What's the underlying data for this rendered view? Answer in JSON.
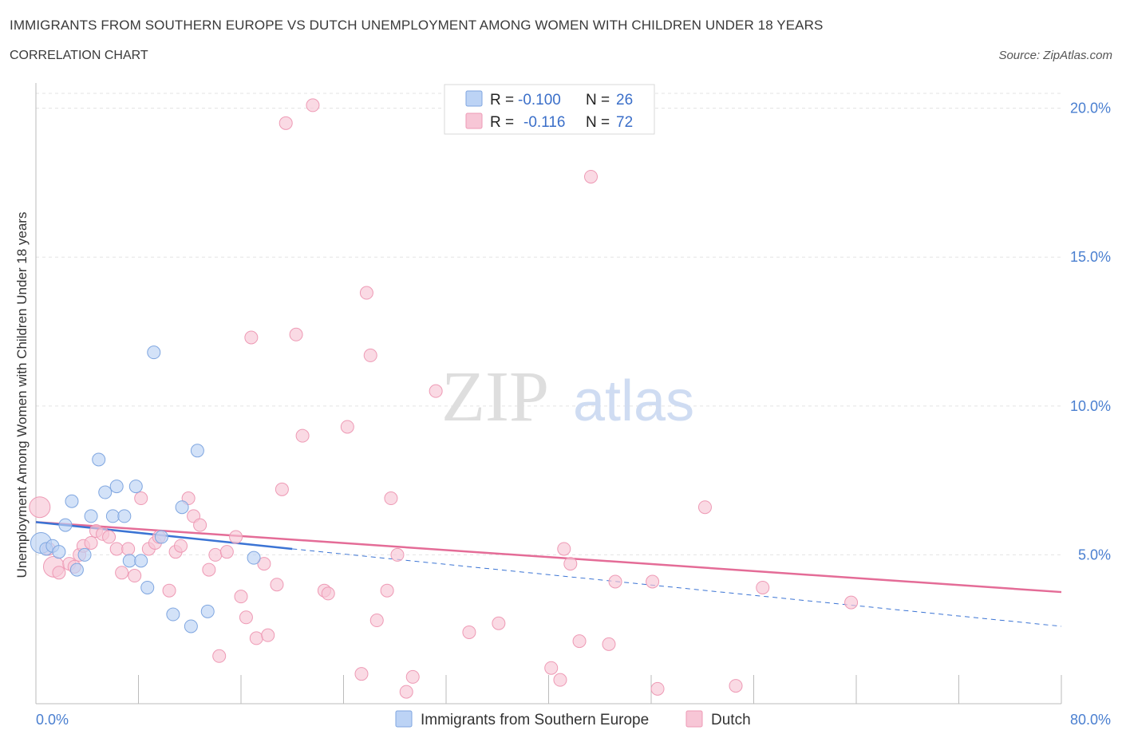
{
  "header": {
    "title": "IMMIGRANTS FROM SOUTHERN EUROPE VS DUTCH UNEMPLOYMENT AMONG WOMEN WITH CHILDREN UNDER 18 YEARS",
    "subtitle": "CORRELATION CHART",
    "source": "Source: ZipAtlas.com"
  },
  "watermark": {
    "zip": "ZIP",
    "atlas": "atlas"
  },
  "legend": {
    "r_label": "R =",
    "n_label": "N =",
    "rows": [
      {
        "r": "-0.100",
        "n": "26"
      },
      {
        "r": "-0.116",
        "n": "72"
      }
    ]
  },
  "colors": {
    "blue_fill": "#bcd3f5",
    "blue_stroke": "#7fa6e0",
    "blue_line": "#3b74d4",
    "pink_fill": "#f7c6d6",
    "pink_stroke": "#ee9ab5",
    "pink_line": "#e46c97"
  },
  "chart_data": {
    "type": "scatter",
    "title": "IMMIGRANTS FROM SOUTHERN EUROPE VS DUTCH UNEMPLOYMENT AMONG WOMEN WITH CHILDREN UNDER 18 YEARS",
    "xlabel": "",
    "ylabel": "Unemployment Among Women with Children Under 18 years",
    "xlim": [
      0,
      80
    ],
    "ylim": [
      0,
      20.5
    ],
    "x_tick_labels": [
      "0.0%",
      "80.0%"
    ],
    "y_ticks": [
      5,
      10,
      15,
      20
    ],
    "y_tick_labels": [
      "5.0%",
      "10.0%",
      "15.0%",
      "20.0%"
    ],
    "grid": true,
    "legend_position": "top-center",
    "series": [
      {
        "name": "Immigrants from Southern Europe",
        "r": -0.1,
        "n": 26,
        "trend": {
          "x": [
            0,
            20
          ],
          "y": [
            6.1,
            5.2
          ]
        },
        "trend_dashed": {
          "x": [
            20,
            80
          ],
          "y": [
            5.2,
            2.6
          ]
        },
        "points": [
          {
            "x": 0.4,
            "y": 5.4,
            "s": 2
          },
          {
            "x": 0.8,
            "y": 5.2,
            "s": 1
          },
          {
            "x": 1.3,
            "y": 5.3,
            "s": 1
          },
          {
            "x": 1.8,
            "y": 5.1,
            "s": 1
          },
          {
            "x": 2.3,
            "y": 6.0,
            "s": 1
          },
          {
            "x": 2.8,
            "y": 6.8,
            "s": 1
          },
          {
            "x": 3.2,
            "y": 4.5,
            "s": 1
          },
          {
            "x": 3.8,
            "y": 5.0,
            "s": 1
          },
          {
            "x": 4.3,
            "y": 6.3,
            "s": 1
          },
          {
            "x": 4.9,
            "y": 8.2,
            "s": 1
          },
          {
            "x": 5.4,
            "y": 7.1,
            "s": 1
          },
          {
            "x": 6.0,
            "y": 6.3,
            "s": 1
          },
          {
            "x": 6.3,
            "y": 7.3,
            "s": 1
          },
          {
            "x": 6.9,
            "y": 6.3,
            "s": 1
          },
          {
            "x": 7.3,
            "y": 4.8,
            "s": 1
          },
          {
            "x": 7.8,
            "y": 7.3,
            "s": 1
          },
          {
            "x": 8.2,
            "y": 4.8,
            "s": 1
          },
          {
            "x": 8.7,
            "y": 3.9,
            "s": 1
          },
          {
            "x": 9.2,
            "y": 11.8,
            "s": 1
          },
          {
            "x": 9.8,
            "y": 5.6,
            "s": 1
          },
          {
            "x": 10.7,
            "y": 3.0,
            "s": 1
          },
          {
            "x": 11.4,
            "y": 6.6,
            "s": 1
          },
          {
            "x": 12.1,
            "y": 2.6,
            "s": 1
          },
          {
            "x": 12.6,
            "y": 8.5,
            "s": 1
          },
          {
            "x": 13.4,
            "y": 3.1,
            "s": 1
          },
          {
            "x": 17.0,
            "y": 4.9,
            "s": 1
          }
        ]
      },
      {
        "name": "Dutch",
        "r": -0.116,
        "n": 72,
        "trend": {
          "x": [
            0,
            80
          ],
          "y": [
            6.1,
            3.75
          ]
        },
        "points": [
          {
            "x": 0.3,
            "y": 6.6,
            "s": 2
          },
          {
            "x": 1.0,
            "y": 5.2,
            "s": 1
          },
          {
            "x": 1.4,
            "y": 4.6,
            "s": 2
          },
          {
            "x": 1.8,
            "y": 4.4,
            "s": 1
          },
          {
            "x": 2.6,
            "y": 4.7,
            "s": 1
          },
          {
            "x": 3.0,
            "y": 4.6,
            "s": 1
          },
          {
            "x": 3.4,
            "y": 5.0,
            "s": 1
          },
          {
            "x": 3.7,
            "y": 5.3,
            "s": 1
          },
          {
            "x": 4.3,
            "y": 5.4,
            "s": 1
          },
          {
            "x": 4.7,
            "y": 5.8,
            "s": 1
          },
          {
            "x": 5.2,
            "y": 5.7,
            "s": 1
          },
          {
            "x": 5.7,
            "y": 5.6,
            "s": 1
          },
          {
            "x": 6.3,
            "y": 5.2,
            "s": 1
          },
          {
            "x": 6.7,
            "y": 4.4,
            "s": 1
          },
          {
            "x": 7.2,
            "y": 5.2,
            "s": 1
          },
          {
            "x": 7.7,
            "y": 4.3,
            "s": 1
          },
          {
            "x": 8.2,
            "y": 6.9,
            "s": 1
          },
          {
            "x": 8.8,
            "y": 5.2,
            "s": 1
          },
          {
            "x": 9.3,
            "y": 5.4,
            "s": 1
          },
          {
            "x": 9.6,
            "y": 5.6,
            "s": 1
          },
          {
            "x": 10.4,
            "y": 3.8,
            "s": 1
          },
          {
            "x": 10.9,
            "y": 5.1,
            "s": 1
          },
          {
            "x": 11.3,
            "y": 5.3,
            "s": 1
          },
          {
            "x": 11.9,
            "y": 6.9,
            "s": 1
          },
          {
            "x": 12.3,
            "y": 6.3,
            "s": 1
          },
          {
            "x": 12.8,
            "y": 6.0,
            "s": 1
          },
          {
            "x": 13.5,
            "y": 4.5,
            "s": 1
          },
          {
            "x": 14.0,
            "y": 5.0,
            "s": 1
          },
          {
            "x": 14.3,
            "y": 1.6,
            "s": 1
          },
          {
            "x": 14.9,
            "y": 5.1,
            "s": 1
          },
          {
            "x": 15.6,
            "y": 5.6,
            "s": 1
          },
          {
            "x": 16.0,
            "y": 3.6,
            "s": 1
          },
          {
            "x": 16.4,
            "y": 2.9,
            "s": 1
          },
          {
            "x": 16.8,
            "y": 12.3,
            "s": 1
          },
          {
            "x": 17.2,
            "y": 2.2,
            "s": 1
          },
          {
            "x": 17.8,
            "y": 4.7,
            "s": 1
          },
          {
            "x": 18.1,
            "y": 2.3,
            "s": 1
          },
          {
            "x": 18.8,
            "y": 4.0,
            "s": 1
          },
          {
            "x": 19.2,
            "y": 7.2,
            "s": 1
          },
          {
            "x": 19.5,
            "y": 19.5,
            "s": 1
          },
          {
            "x": 20.3,
            "y": 12.4,
            "s": 1
          },
          {
            "x": 20.8,
            "y": 9.0,
            "s": 1
          },
          {
            "x": 21.6,
            "y": 20.1,
            "s": 1
          },
          {
            "x": 22.5,
            "y": 3.8,
            "s": 1
          },
          {
            "x": 22.8,
            "y": 3.7,
            "s": 1
          },
          {
            "x": 24.3,
            "y": 9.3,
            "s": 1
          },
          {
            "x": 25.4,
            "y": 1.0,
            "s": 1
          },
          {
            "x": 25.8,
            "y": 13.8,
            "s": 1
          },
          {
            "x": 26.1,
            "y": 11.7,
            "s": 1
          },
          {
            "x": 26.6,
            "y": 2.8,
            "s": 1
          },
          {
            "x": 27.4,
            "y": 3.8,
            "s": 1
          },
          {
            "x": 27.7,
            "y": 6.9,
            "s": 1
          },
          {
            "x": 28.2,
            "y": 5.0,
            "s": 1
          },
          {
            "x": 28.9,
            "y": 0.4,
            "s": 1
          },
          {
            "x": 29.4,
            "y": 0.9,
            "s": 1
          },
          {
            "x": 31.2,
            "y": 10.5,
            "s": 1
          },
          {
            "x": 33.8,
            "y": 2.4,
            "s": 1
          },
          {
            "x": 36.1,
            "y": 2.7,
            "s": 1
          },
          {
            "x": 40.2,
            "y": 1.2,
            "s": 1
          },
          {
            "x": 40.9,
            "y": 0.8,
            "s": 1
          },
          {
            "x": 41.2,
            "y": 5.2,
            "s": 1
          },
          {
            "x": 41.7,
            "y": 4.7,
            "s": 1
          },
          {
            "x": 42.4,
            "y": 2.1,
            "s": 1
          },
          {
            "x": 43.3,
            "y": 17.7,
            "s": 1
          },
          {
            "x": 44.7,
            "y": 2.0,
            "s": 1
          },
          {
            "x": 45.2,
            "y": 4.1,
            "s": 1
          },
          {
            "x": 48.1,
            "y": 4.1,
            "s": 1
          },
          {
            "x": 48.5,
            "y": 0.5,
            "s": 1
          },
          {
            "x": 52.2,
            "y": 6.6,
            "s": 1
          },
          {
            "x": 54.6,
            "y": 0.6,
            "s": 1
          },
          {
            "x": 56.7,
            "y": 3.9,
            "s": 1
          },
          {
            "x": 63.6,
            "y": 3.4,
            "s": 1
          }
        ]
      }
    ]
  }
}
